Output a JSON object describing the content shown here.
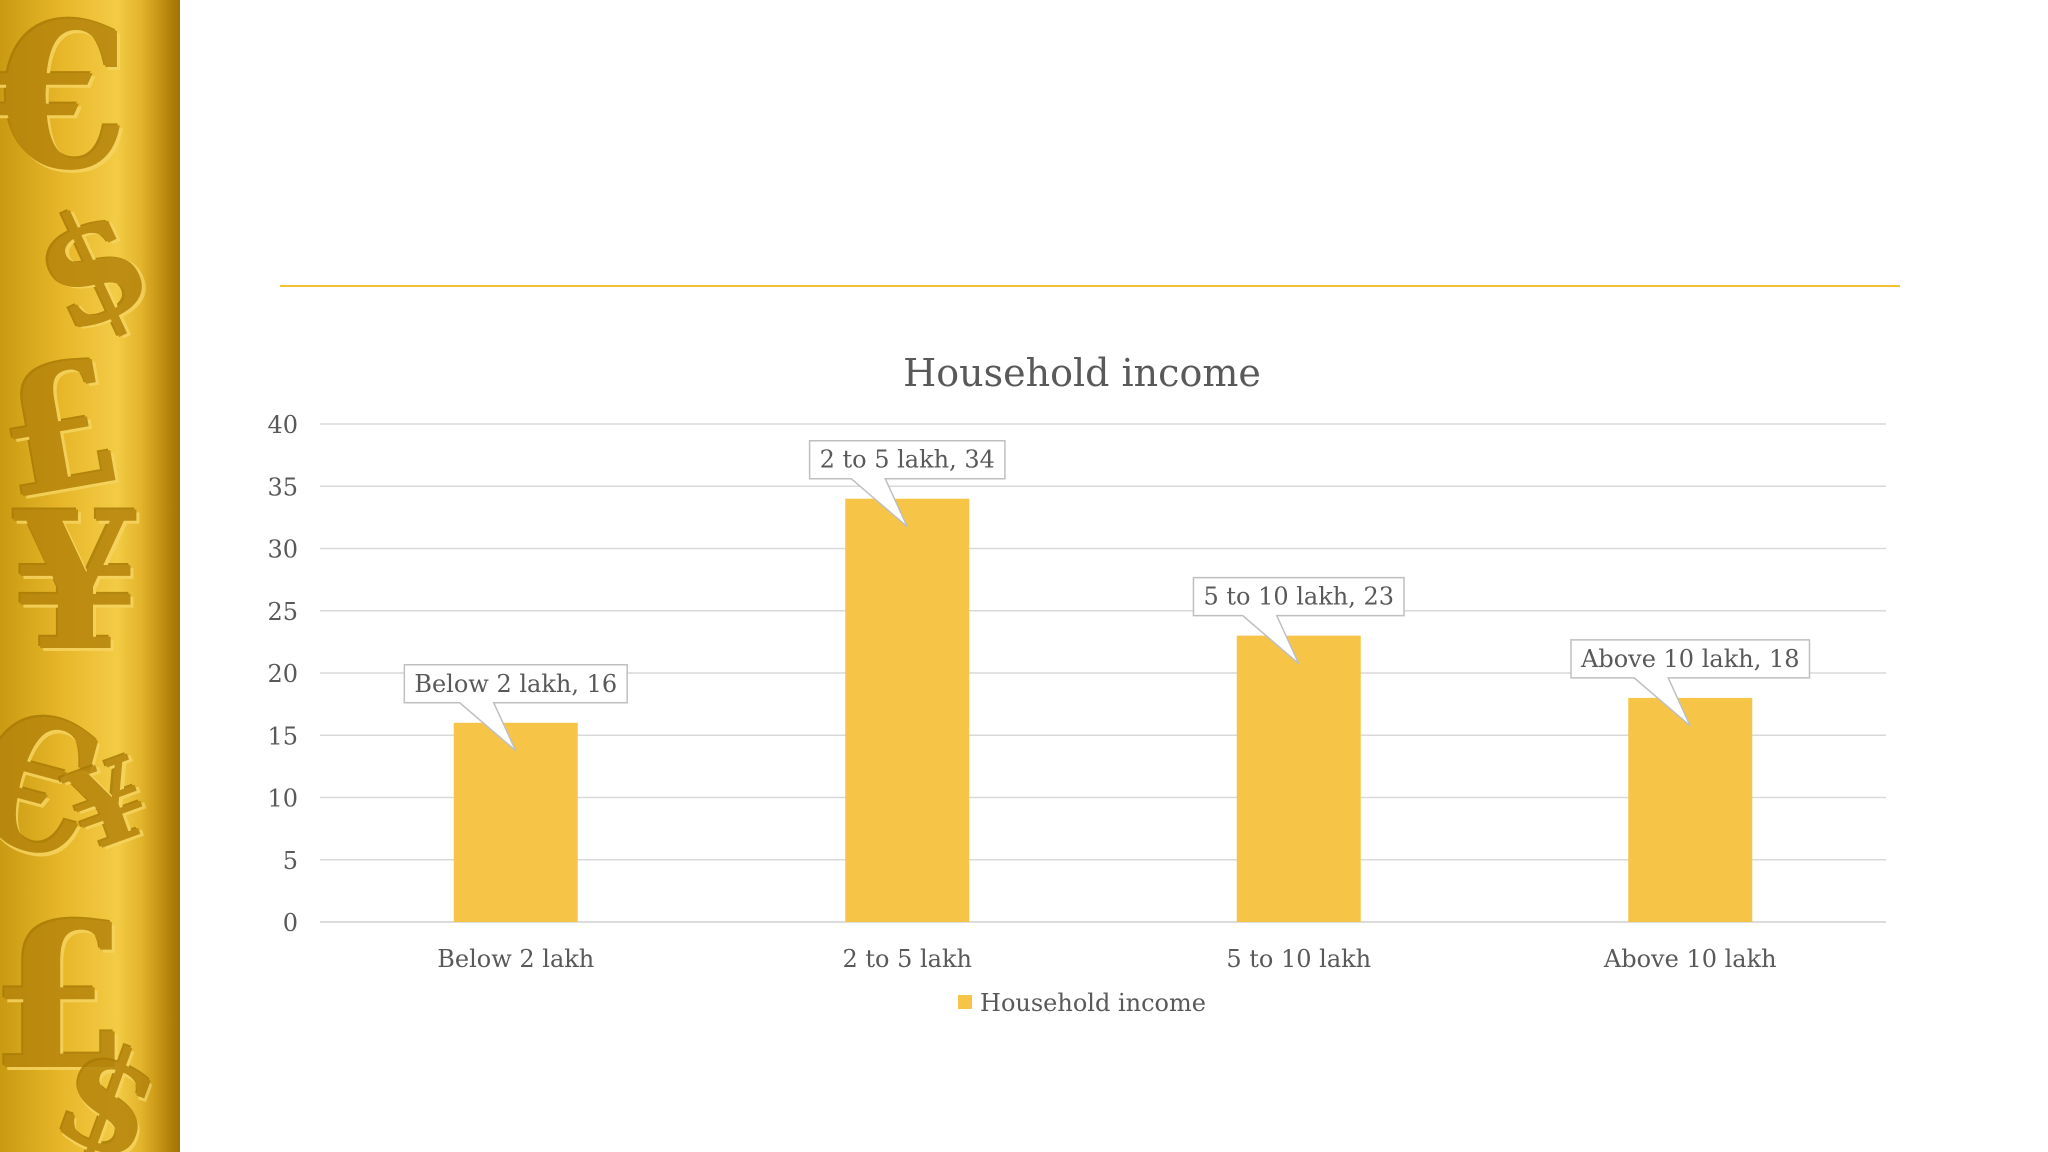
{
  "theme": {
    "accent": "#f2c131",
    "bar": "#f6c548",
    "text": "#595959",
    "grid": "#d9d9d9"
  },
  "decor": {
    "icons": [
      "euro-sign-icon",
      "dollar-sign-icon",
      "pound-sign-icon",
      "yen-sign-icon",
      "euro-sign-icon",
      "pound-sign-icon",
      "yen-sign-icon",
      "dollar-sign-icon"
    ]
  },
  "chart_data": {
    "type": "bar",
    "title": "Household income",
    "categories": [
      "Below 2 lakh",
      "2 to 5 lakh",
      "5 to 10 lakh",
      "Above 10 lakh"
    ],
    "series": [
      {
        "name": "Household income",
        "values": [
          16,
          34,
          23,
          18
        ]
      }
    ],
    "data_labels": [
      "Below 2 lakh, 16",
      "2 to 5 lakh, 34",
      "5 to 10 lakh, 23",
      "Above 10 lakh, 18"
    ],
    "ylim": [
      0,
      40
    ],
    "yticks": [
      0,
      5,
      10,
      15,
      20,
      25,
      30,
      35,
      40
    ],
    "xlabel": "",
    "ylabel": "",
    "grid": true,
    "legend": "bottom"
  }
}
